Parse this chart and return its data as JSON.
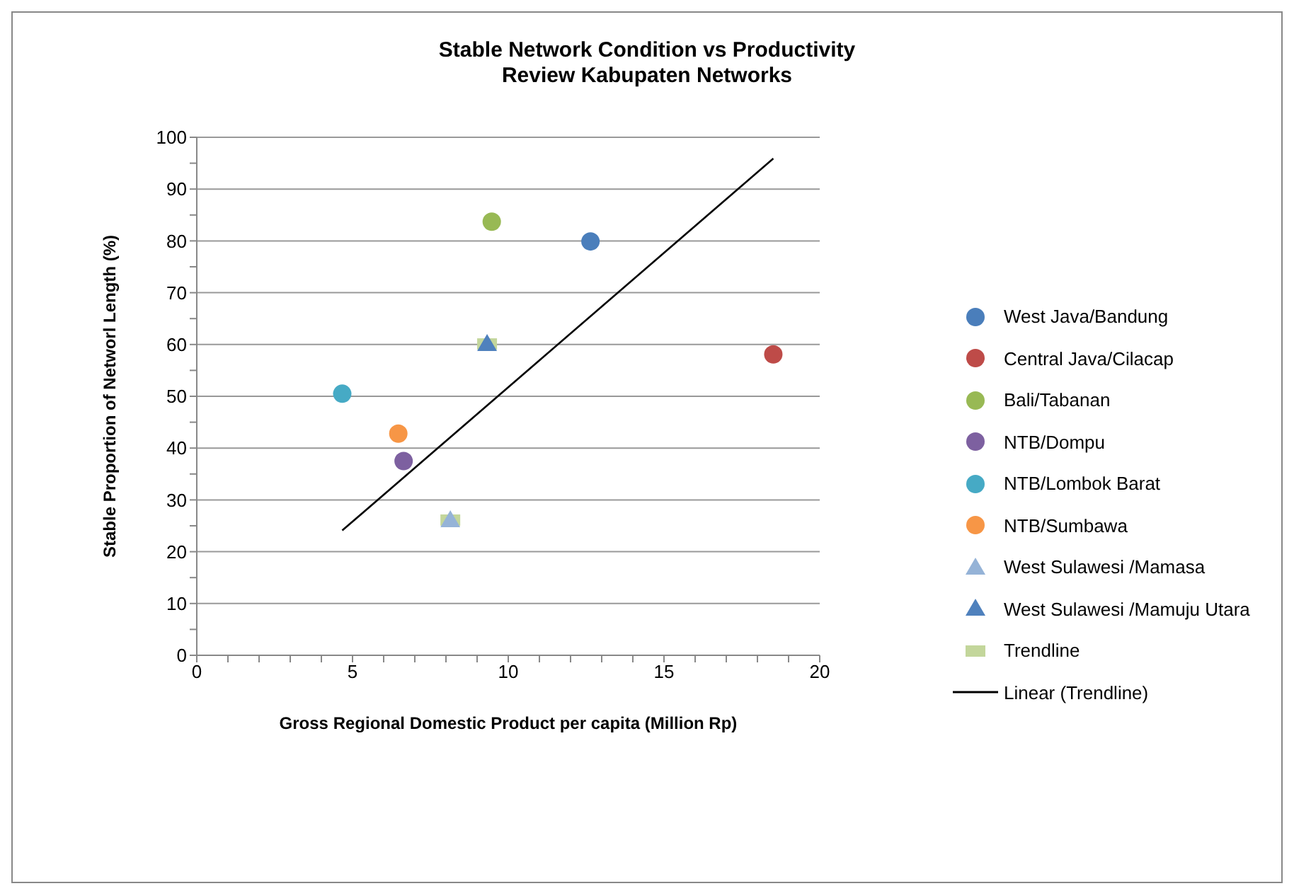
{
  "chart_data": {
    "type": "scatter",
    "title": "Stable Network Condition vs Productivity",
    "subtitle": "Review Kabupaten Networks",
    "xlabel": "Gross Regional Domestic Product per capita (Million Rp)",
    "ylabel": "Stable Proportion of Networl Length (%)",
    "xlim": [
      0,
      20
    ],
    "ylim": [
      0,
      100
    ],
    "xticks": [
      0,
      {
        "value": 1,
        "label": null
      },
      {
        "value": 2,
        "label": null
      },
      {
        "value": 3,
        "label": null
      },
      {
        "value": 4,
        "label": null
      },
      5,
      {
        "value": 6,
        "label": null
      },
      {
        "value": 7,
        "label": null
      },
      {
        "value": 8,
        "label": null
      },
      {
        "value": 9,
        "label": null
      },
      10,
      {
        "value": 11,
        "label": null
      },
      {
        "value": 12,
        "label": null
      },
      {
        "value": 13,
        "label": null
      },
      {
        "value": 14,
        "label": null
      },
      15,
      {
        "value": 16,
        "label": null
      },
      {
        "value": 17,
        "label": null
      },
      {
        "value": 18,
        "label": null
      },
      {
        "value": 19,
        "label": null
      },
      20
    ],
    "yticks": [
      0,
      {
        "value": 5,
        "label": null
      },
      10,
      {
        "value": 15,
        "label": null
      },
      20,
      {
        "value": 25,
        "label": null
      },
      30,
      {
        "value": 35,
        "label": null
      },
      40,
      {
        "value": 45,
        "label": null
      },
      50,
      {
        "value": 55,
        "label": null
      },
      60,
      {
        "value": 65,
        "label": null
      },
      70,
      {
        "value": 75,
        "label": null
      },
      80,
      {
        "value": 85,
        "label": null
      },
      90,
      {
        "value": 95,
        "label": null
      },
      100
    ],
    "grid": "y",
    "legend": "right",
    "series": [
      {
        "name": "West Java/Bandung",
        "color": "#4a7ebb",
        "marker": "circle",
        "x": [
          12.64
        ],
        "values": [
          79.9
        ]
      },
      {
        "name": "Central Java/Cilacap",
        "color": "#be4b48",
        "marker": "circle",
        "x": [
          18.51
        ],
        "values": [
          58.1
        ]
      },
      {
        "name": "Bali/Tabanan",
        "color": "#98b954",
        "marker": "circle",
        "x": [
          9.47
        ],
        "values": [
          83.7
        ]
      },
      {
        "name": "NTB/Dompu",
        "color": "#7d60a0",
        "marker": "circle",
        "x": [
          6.64
        ],
        "values": [
          37.5
        ]
      },
      {
        "name": "NTB/Lombok Barat",
        "color": "#46aac5",
        "marker": "circle",
        "x": [
          4.67
        ],
        "values": [
          50.5
        ]
      },
      {
        "name": "NTB/Sumbawa",
        "color": "#f79646",
        "marker": "circle",
        "x": [
          6.47
        ],
        "values": [
          42.8
        ]
      },
      {
        "name": "West Sulawesi /Mamasa",
        "color": "#95b3d7",
        "marker": "triangle",
        "x": [
          8.14
        ],
        "values": [
          26.1
        ]
      },
      {
        "name": "West Sulawesi /Mamuju  Utara",
        "color": "#4f81bd",
        "marker": "triangle",
        "x": [
          9.32
        ],
        "values": [
          60.1
        ]
      },
      {
        "name": "Trendline",
        "color": "#c3d69b",
        "marker": "square",
        "x": [
          8.14,
          9.32
        ],
        "values": [
          26.1,
          60.1
        ]
      },
      {
        "name": "Linear (Trendline)",
        "type": "line",
        "color": "#000000",
        "marker": "none",
        "x": [
          4.67,
          18.51
        ],
        "values": [
          24.1,
          95.9
        ]
      }
    ]
  }
}
